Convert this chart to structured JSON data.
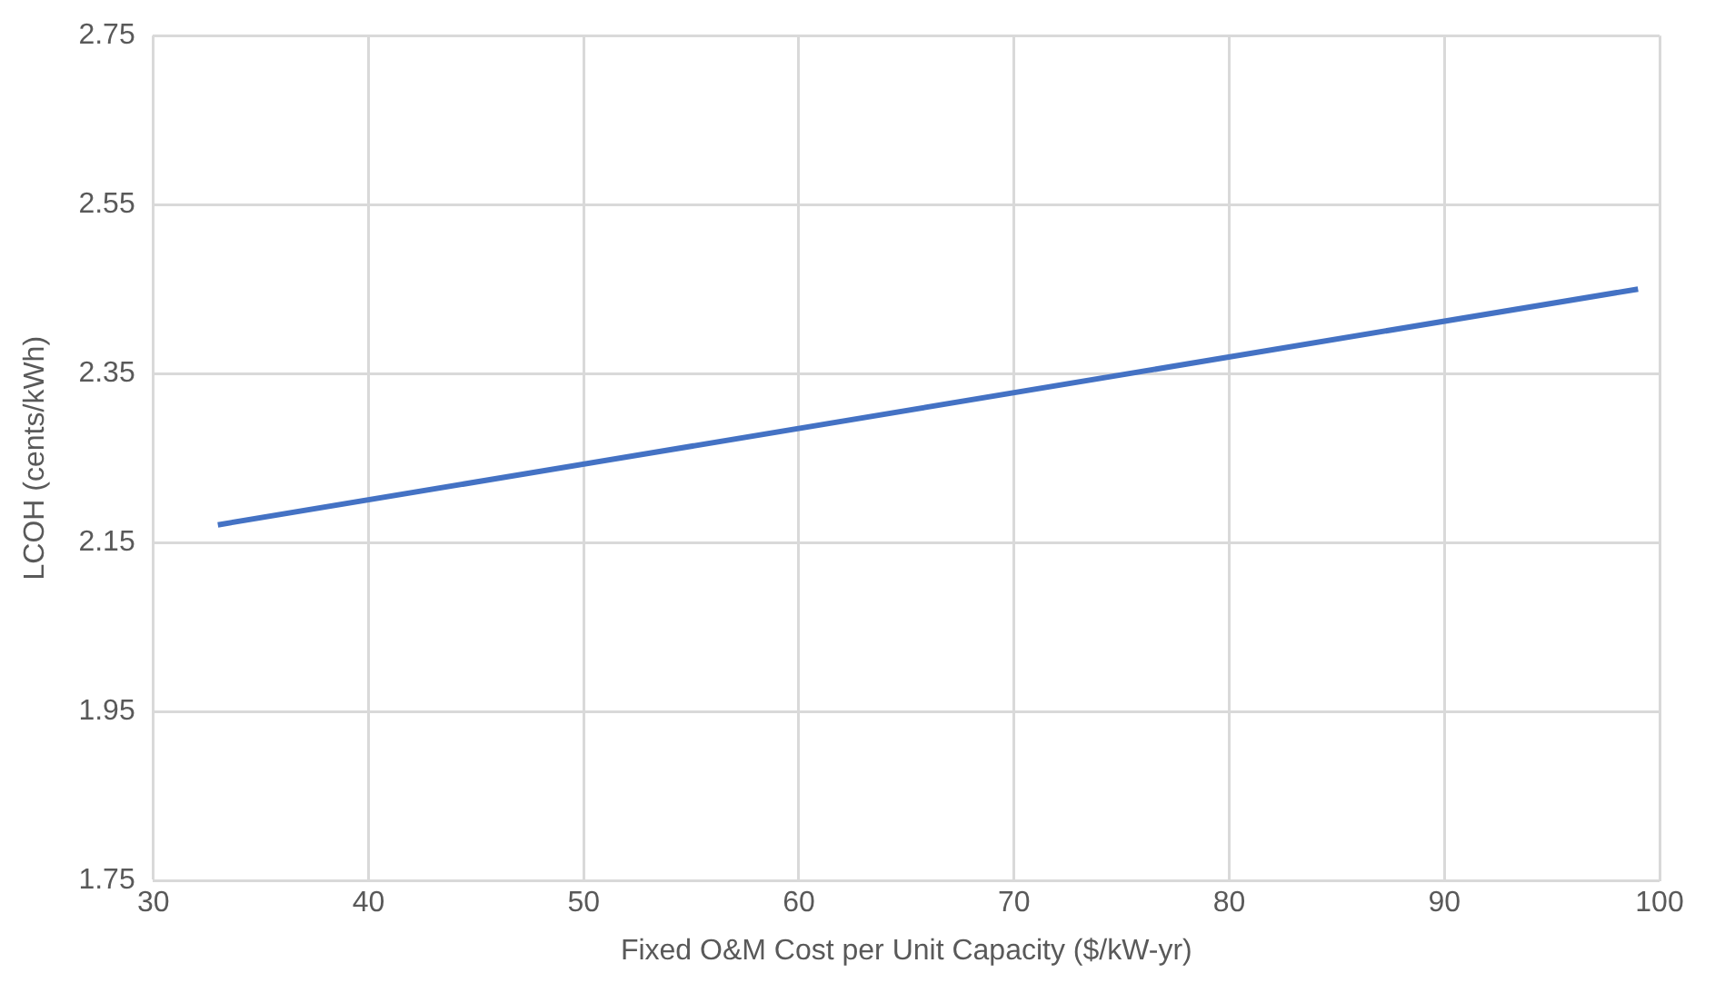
{
  "chart_data": {
    "type": "line",
    "xlabel": "Fixed O&M Cost per Unit Capacity ($/kW-yr)",
    "ylabel": "LCOH (cents/kWh)",
    "x": [
      33,
      99
    ],
    "series": [
      {
        "color": "#4472c4",
        "values": [
          2.171,
          2.45
        ]
      }
    ],
    "xlim": [
      30,
      100
    ],
    "xticks": [
      30,
      40,
      50,
      60,
      70,
      80,
      90,
      100
    ],
    "ylim": [
      1.75,
      2.75
    ],
    "yticks": [
      1.75,
      1.95,
      2.15,
      2.35,
      2.55,
      2.75
    ],
    "grid": true,
    "legend": false,
    "marker": "none",
    "line_style": "solid"
  }
}
